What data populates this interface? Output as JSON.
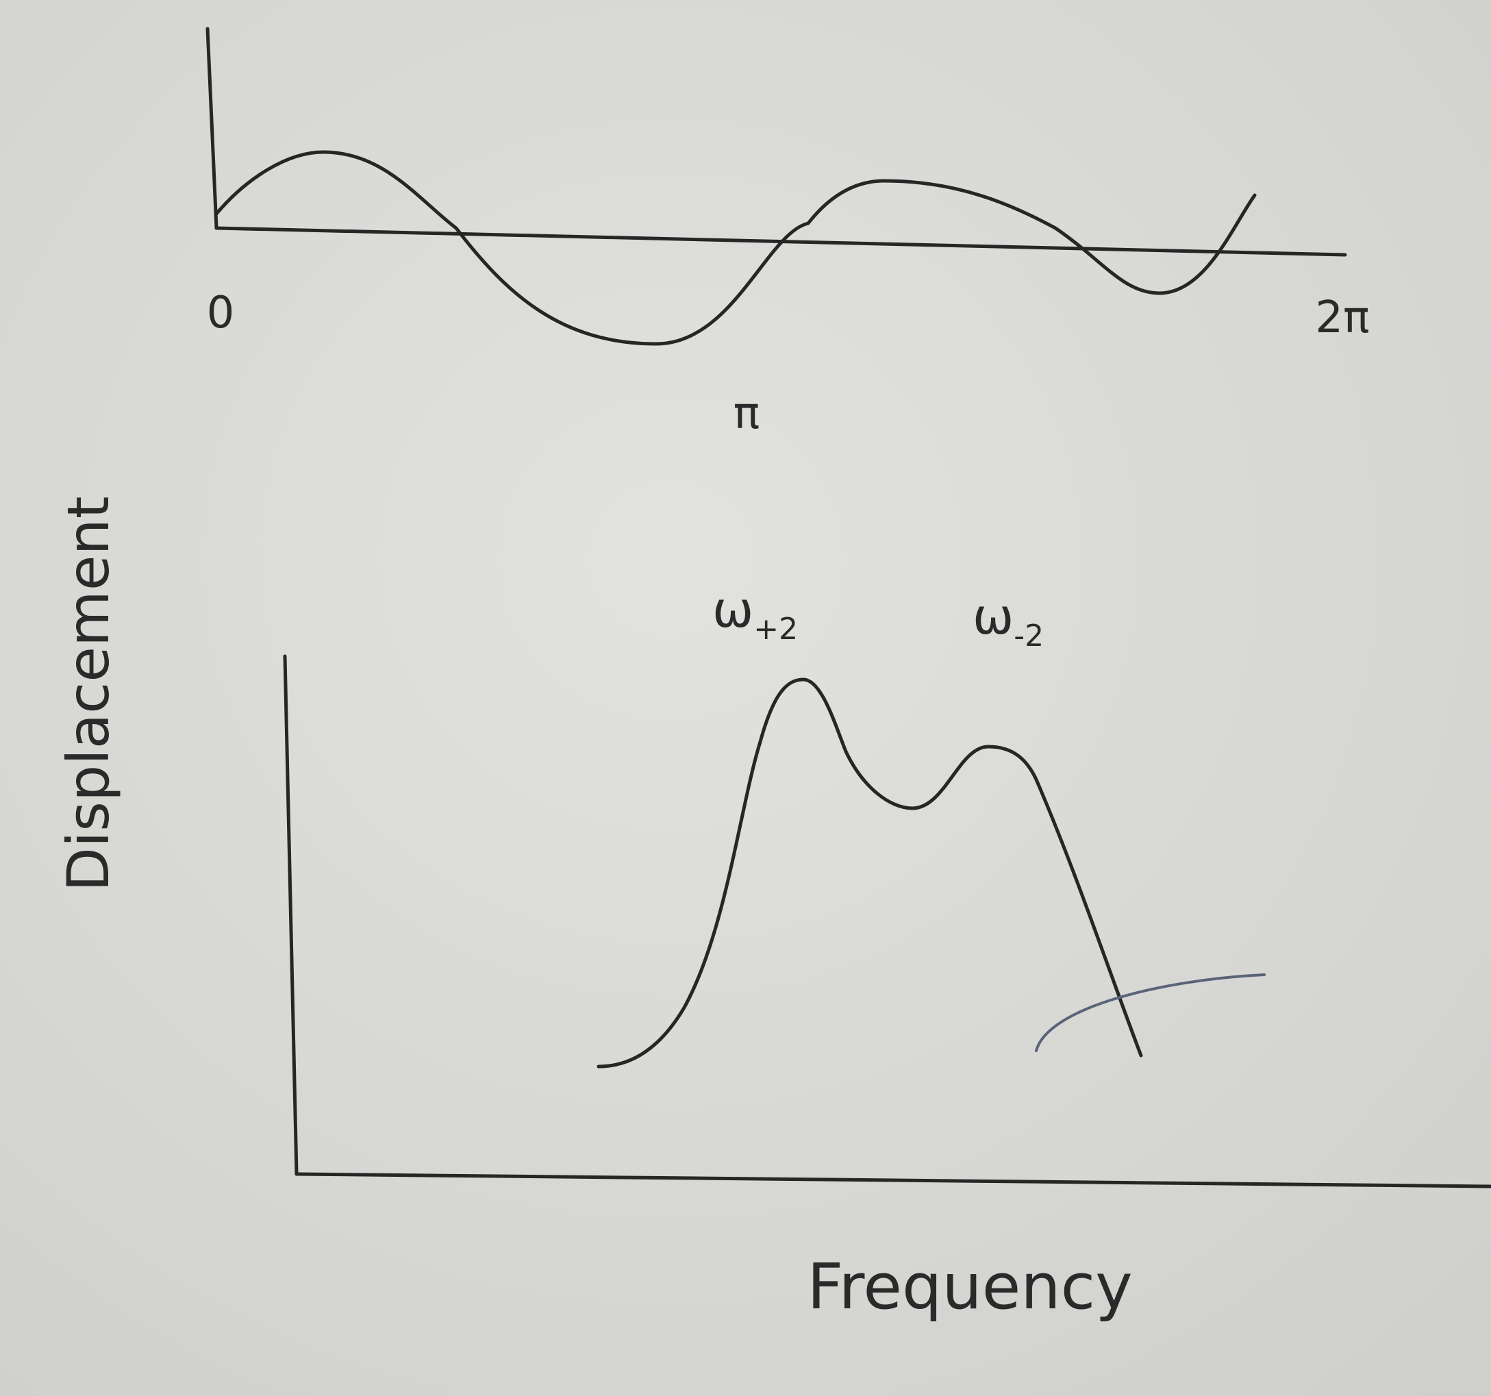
{
  "top_plot": {
    "x_start_label": "0",
    "x_mid_label": "π",
    "x_end_label": "2π"
  },
  "y_axis_label": "Displacement",
  "bottom_plot": {
    "peaks": [
      {
        "symbol": "ω",
        "subscript": "+2"
      },
      {
        "symbol": "ω",
        "subscript": "-2"
      }
    ],
    "x_axis_label": "Frequency"
  }
}
